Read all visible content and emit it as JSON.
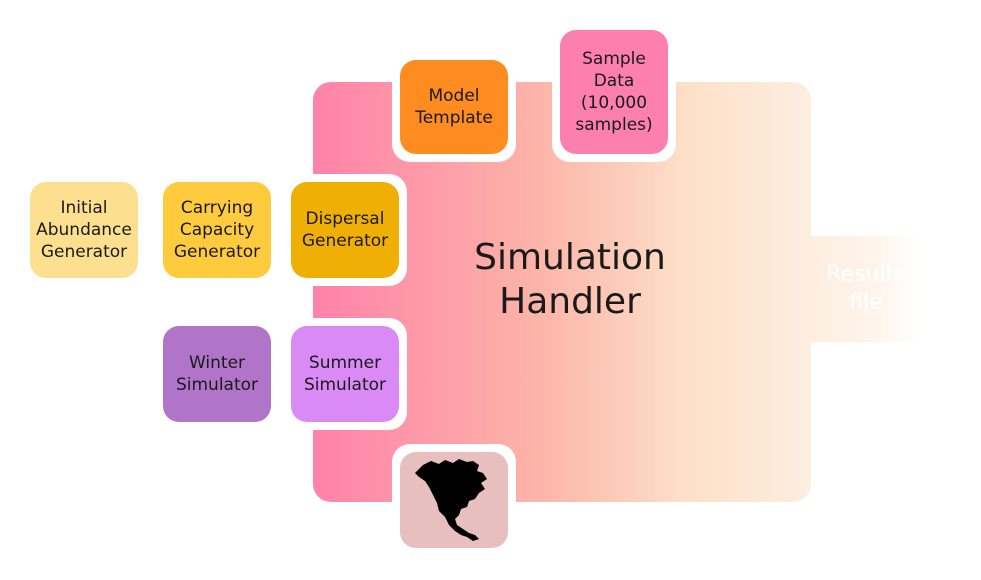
{
  "handler": {
    "title": "Simulation\nHandler"
  },
  "results": {
    "label": "Results\nfile"
  },
  "nodes": {
    "model_template": "Model\nTemplate",
    "sample_data": "Sample\nData\n(10,000\nsamples)",
    "initial_abundance": "Initial\nAbundance\nGenerator",
    "carrying_capacity": "Carrying\nCapacity\nGenerator",
    "dispersal": "Dispersal\nGenerator",
    "winter": "Winter\nSimulator",
    "summer": "Summer\nSimulator"
  },
  "map": {
    "icon": "north-america-map-icon"
  },
  "colors": {
    "handler_start": "#ff82a9",
    "handler_end": "#fdeee0",
    "model_template": "#fe8c20",
    "sample_data": "#fd7fac",
    "initial_abundance": "#fde08f",
    "carrying_capacity": "#fecb3f",
    "dispersal": "#f0af05",
    "winter": "#b075c9",
    "summer": "#d98af5",
    "map": "#e8bfbf"
  }
}
